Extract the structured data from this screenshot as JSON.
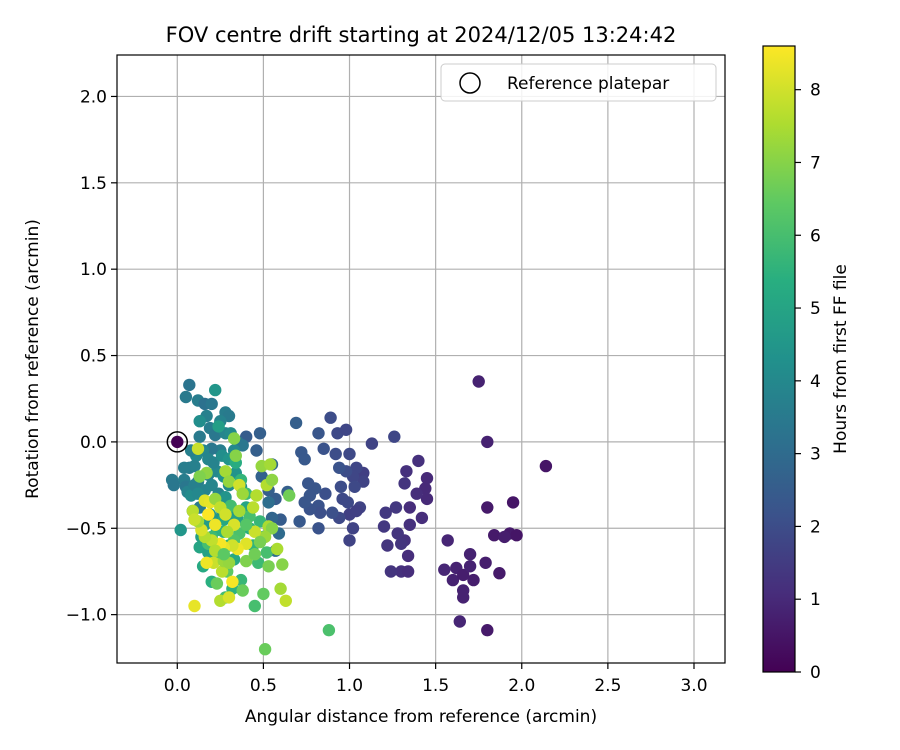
{
  "chart_data": {
    "type": "scatter",
    "title": "FOV centre drift starting at 2024/12/05 13:24:42",
    "xlabel": "Angular distance from reference (arcmin)",
    "ylabel": "Rotation from reference (arcmin)",
    "xlim": [
      -0.35,
      3.18
    ],
    "ylim": [
      -1.28,
      2.24
    ],
    "x_ticks": [
      0.0,
      0.5,
      1.0,
      1.5,
      2.0,
      2.5,
      3.0
    ],
    "x_tick_labels": [
      "0.0",
      "0.5",
      "1.0",
      "1.5",
      "2.0",
      "2.5",
      "3.0"
    ],
    "y_ticks": [
      -1.0,
      -0.5,
      0.0,
      0.5,
      1.0,
      1.5,
      2.0
    ],
    "y_tick_labels": [
      "−1.0",
      "−0.5",
      "0.0",
      "0.5",
      "1.0",
      "1.5",
      "2.0"
    ],
    "grid": true,
    "legend": {
      "position": "top-right",
      "entries": [
        "Reference platepar"
      ]
    },
    "reference_point": {
      "x": 0.0,
      "y": 0.0
    },
    "colorbar": {
      "label": "Hours from first FF file",
      "range": [
        0,
        8.6
      ],
      "ticks": [
        0,
        1,
        2,
        3,
        4,
        5,
        6,
        7,
        8
      ],
      "tick_labels": [
        "0",
        "1",
        "2",
        "3",
        "4",
        "5",
        "6",
        "7",
        "8"
      ],
      "colormap": "viridis"
    },
    "points": [
      [
        1.75,
        0.35,
        0.8
      ],
      [
        1.8,
        0.0,
        0.8
      ],
      [
        2.14,
        -0.14,
        0.5
      ],
      [
        1.8,
        -0.38,
        0.6
      ],
      [
        1.95,
        -0.35,
        0.5
      ],
      [
        1.84,
        -0.54,
        0.6
      ],
      [
        1.93,
        -0.53,
        0.6
      ],
      [
        1.97,
        -0.54,
        0.5
      ],
      [
        1.9,
        -0.55,
        0.7
      ],
      [
        1.87,
        -0.76,
        0.6
      ],
      [
        1.79,
        -0.7,
        0.7
      ],
      [
        1.7,
        -0.65,
        0.8
      ],
      [
        1.62,
        -0.73,
        0.8
      ],
      [
        1.57,
        -0.57,
        0.9
      ],
      [
        1.55,
        -0.74,
        0.9
      ],
      [
        1.6,
        -0.8,
        0.8
      ],
      [
        1.66,
        -0.77,
        0.7
      ],
      [
        1.72,
        -0.8,
        0.7
      ],
      [
        1.66,
        -0.86,
        0.8
      ],
      [
        1.66,
        -0.9,
        0.8
      ],
      [
        1.64,
        -1.04,
        0.9
      ],
      [
        1.8,
        -1.09,
        0.6
      ],
      [
        1.7,
        -0.72,
        0.8
      ],
      [
        1.45,
        -0.21,
        1.0
      ],
      [
        1.44,
        -0.27,
        1.0
      ],
      [
        1.45,
        -0.33,
        1.0
      ],
      [
        1.39,
        -0.3,
        1.1
      ],
      [
        1.4,
        -0.11,
        1.2
      ],
      [
        1.33,
        -0.17,
        1.2
      ],
      [
        1.32,
        -0.24,
        1.3
      ],
      [
        1.35,
        -0.38,
        1.1
      ],
      [
        1.35,
        -0.48,
        1.2
      ],
      [
        1.42,
        -0.44,
        1.1
      ],
      [
        1.32,
        -0.57,
        1.2
      ],
      [
        1.34,
        -0.66,
        1.1
      ],
      [
        1.3,
        -0.59,
        1.3
      ],
      [
        1.3,
        -0.75,
        1.2
      ],
      [
        1.34,
        -0.75,
        1.1
      ],
      [
        1.28,
        -0.53,
        1.3
      ],
      [
        1.22,
        -0.6,
        1.3
      ],
      [
        1.2,
        -0.49,
        1.4
      ],
      [
        1.21,
        -0.41,
        1.4
      ],
      [
        1.24,
        -0.75,
        1.3
      ],
      [
        1.27,
        -0.38,
        1.4
      ],
      [
        1.26,
        0.03,
        1.8
      ],
      [
        1.13,
        -0.01,
        1.7
      ],
      [
        1.08,
        -0.18,
        1.6
      ],
      [
        1.08,
        -0.23,
        1.7
      ],
      [
        1.04,
        -0.15,
        1.8
      ],
      [
        1.02,
        -0.2,
        1.8
      ],
      [
        1.06,
        -0.38,
        1.7
      ],
      [
        1.0,
        -0.42,
        1.6
      ],
      [
        0.99,
        -0.35,
        1.9
      ],
      [
        1.02,
        -0.5,
        1.7
      ],
      [
        1.04,
        -0.4,
        1.6
      ],
      [
        1.0,
        -0.57,
        1.7
      ],
      [
        1.03,
        -0.26,
        1.9
      ],
      [
        0.98,
        -0.17,
        2.0
      ],
      [
        0.95,
        -0.26,
        2.0
      ],
      [
        0.94,
        -0.44,
        1.9
      ],
      [
        0.96,
        -0.33,
        1.9
      ],
      [
        0.93,
        0.05,
        1.9
      ],
      [
        0.92,
        -0.07,
        2.0
      ],
      [
        0.89,
        0.14,
        2.0
      ],
      [
        0.98,
        0.07,
        1.8
      ],
      [
        1.0,
        -0.07,
        1.9
      ],
      [
        0.9,
        -0.41,
        2.1
      ],
      [
        0.94,
        -0.15,
        2.2
      ],
      [
        0.85,
        -0.04,
        2.2
      ],
      [
        0.82,
        0.05,
        2.3
      ],
      [
        0.86,
        -0.3,
        2.1
      ],
      [
        0.82,
        -0.37,
        2.2
      ],
      [
        0.8,
        -0.27,
        2.3
      ],
      [
        0.83,
        -0.41,
        2.1
      ],
      [
        0.82,
        -0.5,
        2.2
      ],
      [
        0.77,
        -0.31,
        2.3
      ],
      [
        0.77,
        -0.39,
        2.2
      ],
      [
        0.76,
        -0.24,
        2.3
      ],
      [
        0.72,
        -0.06,
        2.4
      ],
      [
        0.74,
        -0.1,
        2.4
      ],
      [
        0.69,
        0.11,
        2.6
      ],
      [
        0.71,
        -0.46,
        2.4
      ],
      [
        0.74,
        -0.35,
        2.3
      ],
      [
        0.6,
        -0.45,
        2.5
      ],
      [
        0.64,
        -0.29,
        2.6
      ],
      [
        0.57,
        -0.33,
        2.5
      ],
      [
        0.53,
        -0.28,
        2.6
      ],
      [
        0.49,
        -0.2,
        2.7
      ],
      [
        0.46,
        -0.05,
        2.6
      ],
      [
        0.4,
        0.03,
        2.5
      ],
      [
        0.48,
        0.05,
        2.6
      ],
      [
        0.55,
        -0.13,
        2.9
      ],
      [
        0.55,
        -0.44,
        2.8
      ],
      [
        0.59,
        -0.53,
        3.0
      ],
      [
        0.57,
        -0.63,
        3.1
      ],
      [
        0.53,
        -0.35,
        3.1
      ],
      [
        0.05,
        0.26,
        3.5
      ],
      [
        0.07,
        0.33,
        3.3
      ],
      [
        0.12,
        0.24,
        3.6
      ],
      [
        0.16,
        0.22,
        3.2
      ],
      [
        0.2,
        0.22,
        3.4
      ],
      [
        0.22,
        0.3,
        4.5
      ],
      [
        0.28,
        0.17,
        3.6
      ],
      [
        0.3,
        0.15,
        3.5
      ],
      [
        0.25,
        0.12,
        3.8
      ],
      [
        0.17,
        0.15,
        3.7
      ],
      [
        0.13,
        0.12,
        4.2
      ],
      [
        0.19,
        0.08,
        3.6
      ],
      [
        0.22,
        0.04,
        3.4
      ],
      [
        0.28,
        0.05,
        3.9
      ],
      [
        0.31,
        0.05,
        4.1
      ],
      [
        0.35,
        0.0,
        3.2
      ],
      [
        0.38,
        -0.02,
        3.4
      ],
      [
        0.33,
        -0.05,
        4.0
      ],
      [
        0.25,
        -0.05,
        3.6
      ],
      [
        0.2,
        -0.04,
        3.4
      ],
      [
        0.15,
        -0.05,
        3.9
      ],
      [
        0.11,
        -0.08,
        4.0
      ],
      [
        0.08,
        -0.05,
        3.7
      ],
      [
        0.13,
        0.03,
        3.5
      ],
      [
        0.24,
        0.09,
        4.8
      ],
      [
        0.04,
        -0.22,
        3.6
      ],
      [
        0.05,
        -0.26,
        3.4
      ],
      [
        0.06,
        -0.29,
        3.8
      ],
      [
        0.08,
        -0.31,
        4.1
      ],
      [
        0.07,
        -0.15,
        3.5
      ],
      [
        0.1,
        -0.14,
        3.7
      ],
      [
        0.12,
        -0.23,
        3.6
      ],
      [
        0.09,
        -0.4,
        3.4
      ],
      [
        0.13,
        -0.38,
        3.5
      ],
      [
        0.16,
        -0.28,
        3.8
      ],
      [
        0.18,
        -0.19,
        3.7
      ],
      [
        0.2,
        -0.25,
        3.9
      ],
      [
        0.23,
        -0.17,
        4.0
      ],
      [
        0.24,
        -0.3,
        3.8
      ],
      [
        0.27,
        -0.2,
        4.3
      ],
      [
        0.3,
        -0.25,
        4.1
      ],
      [
        0.34,
        -0.18,
        4.4
      ],
      [
        0.37,
        -0.26,
        4.2
      ],
      [
        0.28,
        -0.32,
        4.4
      ],
      [
        0.26,
        -0.4,
        4.3
      ],
      [
        0.22,
        -0.45,
        4.5
      ],
      [
        0.19,
        -0.42,
        4.6
      ],
      [
        0.16,
        -0.48,
        4.7
      ],
      [
        0.14,
        -0.55,
        4.8
      ],
      [
        0.13,
        -0.61,
        5.0
      ],
      [
        0.18,
        -0.64,
        4.9
      ],
      [
        0.21,
        -0.68,
        5.0
      ],
      [
        0.24,
        -0.6,
        5.3
      ],
      [
        0.27,
        -0.52,
        5.4
      ],
      [
        0.3,
        -0.6,
        5.5
      ],
      [
        0.33,
        -0.68,
        5.2
      ],
      [
        0.31,
        -0.42,
        4.7
      ],
      [
        0.35,
        -0.45,
        4.9
      ],
      [
        0.4,
        -0.38,
        5.0
      ],
      [
        0.42,
        -0.5,
        5.4
      ],
      [
        0.44,
        -0.6,
        5.6
      ],
      [
        0.47,
        -0.7,
        5.8
      ],
      [
        0.5,
        -0.55,
        5.9
      ],
      [
        0.52,
        -0.64,
        6.0
      ],
      [
        0.48,
        -0.46,
        5.7
      ],
      [
        0.45,
        -0.95,
        6.0
      ],
      [
        0.37,
        -0.8,
        5.7
      ],
      [
        0.32,
        -0.85,
        5.5
      ],
      [
        0.28,
        -0.9,
        5.9
      ],
      [
        0.2,
        -0.81,
        5.4
      ],
      [
        0.15,
        -0.72,
        5.2
      ],
      [
        -0.03,
        -0.22,
        3.5
      ],
      [
        -0.02,
        -0.25,
        3.4
      ],
      [
        0.02,
        -0.51,
        4.5
      ],
      [
        0.04,
        -0.15,
        3.6
      ],
      [
        0.1,
        -0.25,
        3.7
      ],
      [
        0.12,
        -0.3,
        4.0
      ],
      [
        0.18,
        -0.1,
        3.9
      ],
      [
        0.21,
        -0.12,
        3.8
      ],
      [
        0.26,
        -0.08,
        4.2
      ],
      [
        0.3,
        -0.1,
        4.4
      ],
      [
        0.34,
        -0.12,
        5.3
      ],
      [
        0.37,
        -0.22,
        5.6
      ],
      [
        0.4,
        -0.3,
        5.8
      ],
      [
        0.42,
        -0.43,
        6.0
      ],
      [
        0.36,
        -0.53,
        6.1
      ],
      [
        0.33,
        -0.57,
        6.2
      ],
      [
        0.31,
        -0.37,
        5.9
      ],
      [
        0.27,
        -0.45,
        5.1
      ],
      [
        0.23,
        -0.51,
        5.5
      ],
      [
        0.2,
        -0.55,
        5.8
      ],
      [
        0.18,
        -0.59,
        6.0
      ],
      [
        0.24,
        -0.67,
        6.2
      ],
      [
        0.29,
        -0.75,
        6.4
      ],
      [
        0.23,
        -0.82,
        6.6
      ],
      [
        0.33,
        0.02,
        7.0
      ],
      [
        0.34,
        -0.08,
        7.0
      ],
      [
        0.12,
        -0.04,
        7.9
      ],
      [
        0.17,
        -0.18,
        7.1
      ],
      [
        0.28,
        -0.17,
        7.4
      ],
      [
        0.3,
        -0.23,
        7.2
      ],
      [
        0.36,
        -0.25,
        8.0
      ],
      [
        0.38,
        -0.3,
        7.3
      ],
      [
        0.49,
        -0.14,
        7.2
      ],
      [
        0.54,
        -0.13,
        7.4
      ],
      [
        0.52,
        -0.25,
        7.6
      ],
      [
        0.55,
        -0.22,
        7.1
      ],
      [
        0.46,
        -0.31,
        7.6
      ],
      [
        0.44,
        -0.38,
        7.7
      ],
      [
        0.53,
        -0.49,
        7.5
      ],
      [
        0.55,
        -0.5,
        7.0
      ],
      [
        0.51,
        -0.55,
        7.3
      ],
      [
        0.45,
        -0.52,
        7.9
      ],
      [
        0.4,
        -0.59,
        8.2
      ],
      [
        0.35,
        -0.62,
        8.4
      ],
      [
        0.32,
        -0.6,
        8.0
      ],
      [
        0.27,
        -0.61,
        8.3
      ],
      [
        0.25,
        -0.59,
        8.5
      ],
      [
        0.2,
        -0.57,
        7.8
      ],
      [
        0.16,
        -0.55,
        7.6
      ],
      [
        0.14,
        -0.51,
        8.1
      ],
      [
        0.12,
        -0.46,
        7.4
      ],
      [
        0.09,
        -0.4,
        7.7
      ],
      [
        0.1,
        -0.45,
        7.9
      ],
      [
        0.16,
        -0.34,
        8.2
      ],
      [
        0.19,
        -0.35,
        8.3
      ],
      [
        0.22,
        -0.33,
        7.2
      ],
      [
        0.25,
        -0.38,
        7.8
      ],
      [
        0.28,
        -0.42,
        8.0
      ],
      [
        0.33,
        -0.48,
        8.1
      ],
      [
        0.36,
        -0.4,
        7.4
      ],
      [
        0.29,
        -0.52,
        7.5
      ],
      [
        0.22,
        -0.48,
        8.4
      ],
      [
        0.18,
        -0.42,
        8.6
      ],
      [
        0.1,
        -0.95,
        8.3
      ],
      [
        0.25,
        -0.92,
        7.6
      ],
      [
        0.3,
        -0.9,
        8.1
      ],
      [
        0.32,
        -0.81,
        8.5
      ],
      [
        0.26,
        -0.75,
        7.7
      ],
      [
        0.21,
        -0.7,
        7.9
      ],
      [
        0.17,
        -0.7,
        8.4
      ],
      [
        0.27,
        -0.69,
        7.3
      ],
      [
        0.22,
        -0.63,
        7.6
      ],
      [
        0.3,
        -0.7,
        7.2
      ],
      [
        0.58,
        -0.62,
        7.5
      ],
      [
        0.61,
        -0.71,
        7.0
      ],
      [
        0.6,
        -0.85,
        7.4
      ],
      [
        0.63,
        -0.92,
        7.8
      ],
      [
        0.5,
        -0.88,
        6.5
      ],
      [
        0.53,
        -0.72,
        6.8
      ],
      [
        0.65,
        -0.31,
        6.7
      ],
      [
        0.48,
        -0.58,
        6.8
      ],
      [
        0.4,
        -0.69,
        6.9
      ],
      [
        0.38,
        -0.86,
        6.6
      ],
      [
        0.51,
        -1.2,
        6.6
      ],
      [
        0.88,
        -1.09,
        6.1
      ],
      [
        0.27,
        -0.65,
        6.4
      ],
      [
        0.13,
        -0.2,
        6.9
      ],
      [
        0.4,
        -0.48,
        6.3
      ],
      [
        0.45,
        -0.65,
        6.7
      ]
    ]
  }
}
